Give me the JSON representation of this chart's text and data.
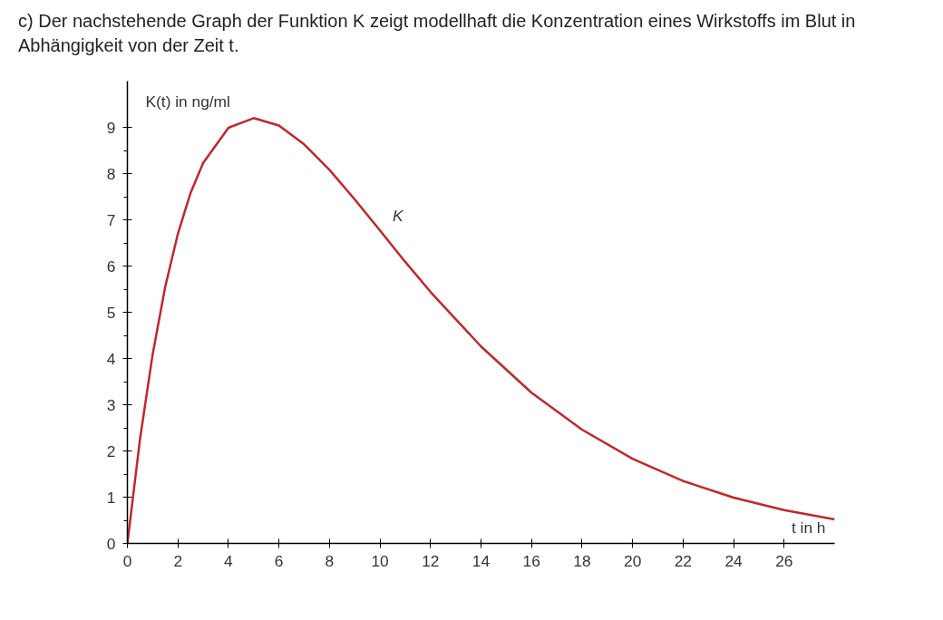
{
  "chart_data": {
    "type": "line",
    "title": "c) Der nachstehende Graph der Funktion K zeigt modellhaft die Konzentration eines Wirkstoffs im Blut in Abhängigkeit von der Zeit t.",
    "xlabel": "t in h",
    "ylabel": "K(t) in ng/ml",
    "x": [
      0,
      0.5,
      1,
      1.5,
      2,
      2.5,
      3,
      4,
      5,
      6,
      7,
      8,
      9,
      10,
      11,
      12,
      14,
      16,
      18,
      20,
      22,
      24,
      26,
      28
    ],
    "series": [
      {
        "color": "#c0272d",
        "values": [
          0,
          2.26,
          4.09,
          5.56,
          6.7,
          7.58,
          8.23,
          8.99,
          9.2,
          9.04,
          8.63,
          8.08,
          7.44,
          6.77,
          6.09,
          5.44,
          4.26,
          3.26,
          2.46,
          1.83,
          1.35,
          0.99,
          0.72,
          0.52
        ]
      }
    ],
    "annotations": [
      "K"
    ],
    "xlim": [
      0,
      28
    ],
    "ylim": [
      0,
      10
    ],
    "xticks": [
      0,
      2,
      4,
      6,
      8,
      10,
      12,
      14,
      16,
      18,
      20,
      22,
      24,
      26
    ],
    "yticks": [
      0,
      {
        "value": 0.5,
        "label": null
      },
      1,
      {
        "value": 1.5,
        "label": null
      },
      2,
      {
        "value": 2.5,
        "label": null
      },
      3,
      {
        "value": 3.5,
        "label": null
      },
      4,
      {
        "value": 4.5,
        "label": null
      },
      5,
      {
        "value": 5.5,
        "label": null
      },
      6,
      {
        "value": 6.5,
        "label": null
      },
      7,
      {
        "value": 7.5,
        "label": null
      },
      8,
      {
        "value": 8.5,
        "label": null
      },
      9
    ],
    "grid": false,
    "marker": "none",
    "line_style": "solid"
  }
}
